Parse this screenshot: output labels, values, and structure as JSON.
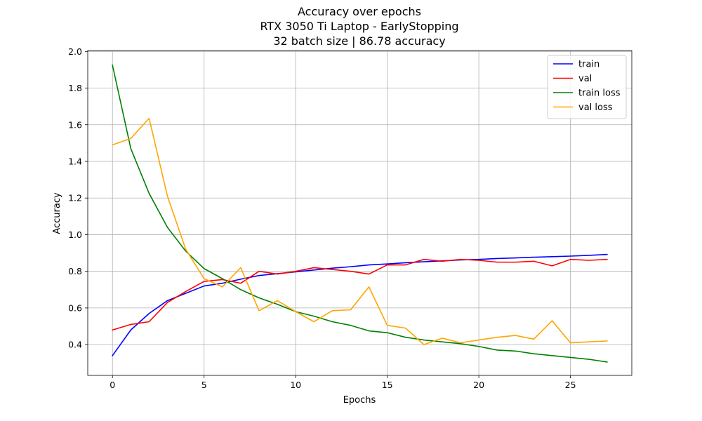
{
  "chart_data": {
    "type": "line",
    "title_lines": [
      "Accuracy over epochs",
      "RTX 3050 Ti Laptop - EarlyStopping",
      "32 batch size | 86.78 accuracy"
    ],
    "xlabel": "Epochs",
    "ylabel": "Accuracy",
    "xlim": [
      -1.35,
      28.35
    ],
    "ylim": [
      0.232,
      2.005
    ],
    "xticks": [
      0,
      5,
      10,
      15,
      20,
      25
    ],
    "yticks": [
      0.4,
      0.6,
      0.8,
      1.0,
      1.2,
      1.4,
      1.6,
      1.8,
      2.0
    ],
    "xtick_labels": [
      "0",
      "5",
      "10",
      "15",
      "20",
      "25"
    ],
    "ytick_labels": [
      "0.4",
      "0.6",
      "0.8",
      "1.0",
      "1.2",
      "1.4",
      "1.6",
      "1.8",
      "2.0"
    ],
    "grid": true,
    "legend_position": "top-right",
    "x": [
      0,
      1,
      2,
      3,
      4,
      5,
      6,
      7,
      8,
      9,
      10,
      11,
      12,
      13,
      14,
      15,
      16,
      17,
      18,
      19,
      20,
      21,
      22,
      23,
      24,
      25,
      26,
      27
    ],
    "series": [
      {
        "name": "train",
        "color": "#0000ff",
        "values": [
          0.34,
          0.48,
          0.57,
          0.64,
          0.68,
          0.72,
          0.735,
          0.757,
          0.777,
          0.787,
          0.797,
          0.807,
          0.817,
          0.825,
          0.835,
          0.84,
          0.847,
          0.852,
          0.857,
          0.862,
          0.865,
          0.87,
          0.873,
          0.877,
          0.88,
          0.883,
          0.887,
          0.892
        ]
      },
      {
        "name": "val",
        "color": "#ff0000",
        "values": [
          0.48,
          0.51,
          0.525,
          0.63,
          0.69,
          0.745,
          0.755,
          0.735,
          0.8,
          0.785,
          0.8,
          0.82,
          0.81,
          0.8,
          0.785,
          0.835,
          0.835,
          0.865,
          0.855,
          0.865,
          0.86,
          0.85,
          0.85,
          0.855,
          0.83,
          0.865,
          0.86,
          0.865
        ]
      },
      {
        "name": "train loss",
        "color": "#008000",
        "values": [
          1.925,
          1.47,
          1.225,
          1.04,
          0.91,
          0.815,
          0.76,
          0.7,
          0.655,
          0.62,
          0.58,
          0.555,
          0.525,
          0.505,
          0.475,
          0.465,
          0.44,
          0.425,
          0.415,
          0.405,
          0.39,
          0.37,
          0.365,
          0.35,
          0.34,
          0.33,
          0.32,
          0.305
        ]
      },
      {
        "name": "val loss",
        "color": "#ffa500",
        "values": [
          1.49,
          1.525,
          1.635,
          1.21,
          0.92,
          0.76,
          0.715,
          0.82,
          0.585,
          0.64,
          0.58,
          0.525,
          0.585,
          0.59,
          0.715,
          0.505,
          0.49,
          0.4,
          0.435,
          0.41,
          0.425,
          0.44,
          0.45,
          0.43,
          0.53,
          0.41,
          0.415,
          0.42
        ]
      }
    ]
  }
}
